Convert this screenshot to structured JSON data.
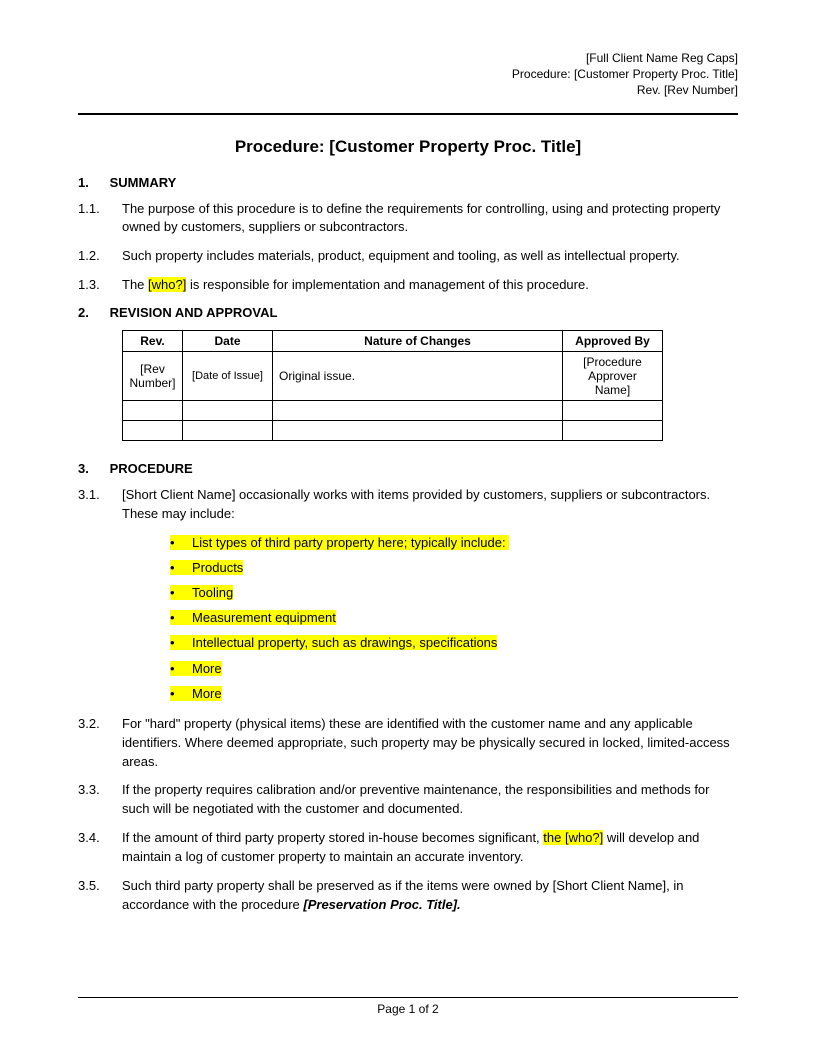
{
  "header": {
    "line1": "[Full Client Name Reg Caps]",
    "line2": "Procedure: [Customer Property Proc. Title]",
    "line3": "Rev. [Rev Number]"
  },
  "title": "Procedure: [Customer Property Proc. Title]",
  "sections": {
    "s1": {
      "num": "1.",
      "heading": "SUMMARY"
    },
    "s2": {
      "num": "2.",
      "heading": "REVISION AND APPROVAL"
    },
    "s3": {
      "num": "3.",
      "heading": "PROCEDURE"
    }
  },
  "paras": {
    "p11": {
      "num": "1.1.",
      "text": "The purpose of this procedure is to define the requirements for controlling, using and protecting property owned by customers, suppliers or subcontractors."
    },
    "p12": {
      "num": "1.2.",
      "text": "Such property includes materials, product, equipment and tooling, as well as intellectual property."
    },
    "p13": {
      "num": "1.3.",
      "pre": "The ",
      "hl": "[who?]",
      "post": " is responsible for implementation and management of this procedure."
    },
    "p31": {
      "num": "3.1.",
      "text": "[Short Client Name] occasionally works with items provided by customers, suppliers or subcontractors. These may include:"
    },
    "p32": {
      "num": "3.2.",
      "text": "For \"hard\" property (physical items) these  are identified with the customer name and any applicable identifiers. Where deemed appropriate, such property may be physically secured in locked, limited-access areas."
    },
    "p33": {
      "num": "3.3.",
      "text": "If the property requires calibration and/or preventive maintenance, the responsibilities and methods for such will be negotiated with the customer and documented."
    },
    "p34": {
      "num": "3.4.",
      "pre": "If the amount of third party property stored in-house becomes significant, ",
      "hl": "the [who?]",
      "post": " will develop and maintain a log of customer property to maintain an accurate inventory."
    },
    "p35": {
      "num": "3.5.",
      "pre": "Such third party property shall be preserved as if the items were owned by [Short Client Name], in accordance with the procedure ",
      "bold": "[Preservation Proc. Title].",
      "post": ""
    }
  },
  "bullets": [
    "List types of third party property here; typically include:",
    "Products",
    "Tooling",
    "Measurement equipment",
    "Intellectual property, such as drawings, specifications",
    "More",
    "More"
  ],
  "revTable": {
    "headers": {
      "rev": "Rev.",
      "date": "Date",
      "nature": "Nature of Changes",
      "approved": "Approved By"
    },
    "row1": {
      "rev": "[Rev Number]",
      "date": "[Date of Issue]",
      "nature": "Original issue.",
      "approved": "[Procedure Approver Name]"
    }
  },
  "footer": {
    "text": "Page 1 of 2"
  },
  "colors": {
    "highlight": "#ffff00",
    "text": "#000000",
    "background": "#ffffff",
    "border": "#000000"
  },
  "typography": {
    "body_fontsize": 13,
    "title_fontsize": 17,
    "header_fontsize": 12,
    "table_fontsize": 12,
    "font_family": "Arial"
  }
}
